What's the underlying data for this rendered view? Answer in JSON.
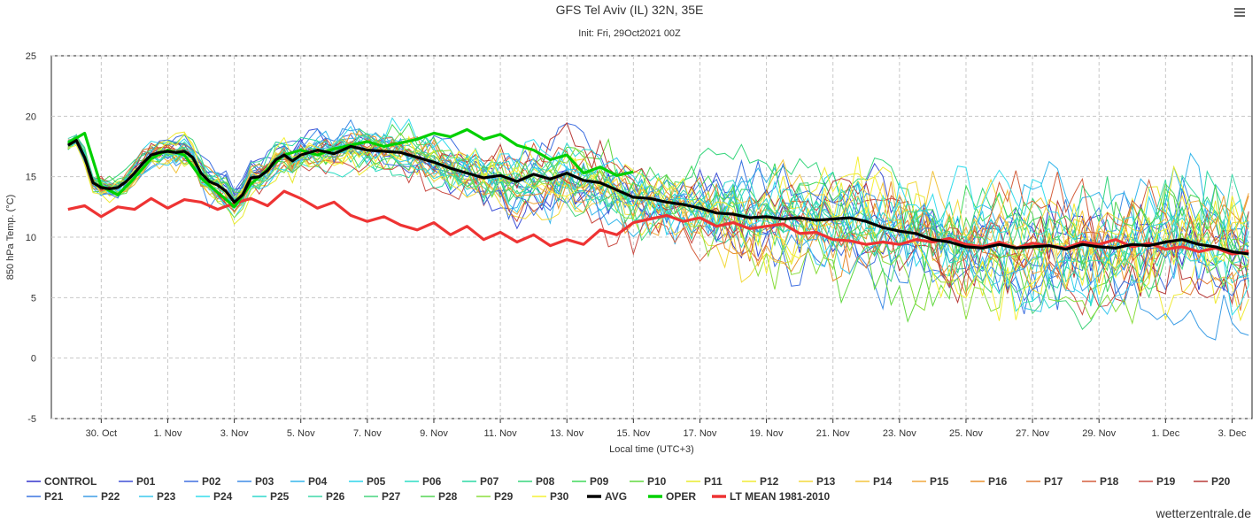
{
  "menu_icon": "hamburger-menu-icon",
  "credit": "wetterzentrale.de",
  "chart_data": {
    "type": "line",
    "title": "GFS Tel Aviv (IL) 32N, 35E",
    "subtitle": "Init: Fri, 29Oct2021 00Z",
    "xlabel": "Local time (UTC+3)",
    "ylabel": "850 hPa Temp. (°C)",
    "ylim": [
      -5,
      25
    ],
    "yticks": [
      -5,
      0,
      5,
      10,
      15,
      20,
      25
    ],
    "xlim_days_from_init": [
      -0.5,
      35.6
    ],
    "xticks": [
      {
        "label": "30. Oct",
        "day": 1
      },
      {
        "label": "1. Nov",
        "day": 3
      },
      {
        "label": "3. Nov",
        "day": 5
      },
      {
        "label": "5. Nov",
        "day": 7
      },
      {
        "label": "7. Nov",
        "day": 9
      },
      {
        "label": "9. Nov",
        "day": 11
      },
      {
        "label": "11. Nov",
        "day": 13
      },
      {
        "label": "13. Nov",
        "day": 15
      },
      {
        "label": "15. Nov",
        "day": 17
      },
      {
        "label": "17. Nov",
        "day": 19
      },
      {
        "label": "19. Nov",
        "day": 21
      },
      {
        "label": "21. Nov",
        "day": 23
      },
      {
        "label": "23. Nov",
        "day": 25
      },
      {
        "label": "25. Nov",
        "day": 27
      },
      {
        "label": "27. Nov",
        "day": 29
      },
      {
        "label": "29. Nov",
        "day": 31
      },
      {
        "label": "1. Dec",
        "day": 33
      },
      {
        "label": "3. Dec",
        "day": 35
      }
    ],
    "grid": true,
    "legend_position": "bottom",
    "members": [
      {
        "name": "CONTROL",
        "color": "#3333cc"
      },
      {
        "name": "P01",
        "color": "#3d4fd6"
      },
      {
        "name": "P02",
        "color": "#3f6fe0"
      },
      {
        "name": "P03",
        "color": "#3d8be6"
      },
      {
        "name": "P04",
        "color": "#34b6ea"
      },
      {
        "name": "P05",
        "color": "#2cd4ea"
      },
      {
        "name": "P06",
        "color": "#2bdcc4"
      },
      {
        "name": "P07",
        "color": "#2ad9a4"
      },
      {
        "name": "P08",
        "color": "#35d67c"
      },
      {
        "name": "P09",
        "color": "#3fd85a"
      },
      {
        "name": "P10",
        "color": "#5fd83e"
      },
      {
        "name": "P11",
        "color": "#e8ea2c"
      },
      {
        "name": "P12",
        "color": "#f0ea34"
      },
      {
        "name": "P13",
        "color": "#f2d93a"
      },
      {
        "name": "P14",
        "color": "#f2c43c"
      },
      {
        "name": "P15",
        "color": "#f0a83e"
      },
      {
        "name": "P16",
        "color": "#e8902e"
      },
      {
        "name": "P17",
        "color": "#e07a34"
      },
      {
        "name": "P18",
        "color": "#d45e3c"
      },
      {
        "name": "P19",
        "color": "#c94a42"
      },
      {
        "name": "P20",
        "color": "#b83a38"
      },
      {
        "name": "P21",
        "color": "#3a74e0"
      },
      {
        "name": "P22",
        "color": "#3d9ee6"
      },
      {
        "name": "P23",
        "color": "#3ac8ee"
      },
      {
        "name": "P24",
        "color": "#34dcec"
      },
      {
        "name": "P25",
        "color": "#2fd8cc"
      },
      {
        "name": "P26",
        "color": "#3dd8a8"
      },
      {
        "name": "P27",
        "color": "#45d47e"
      },
      {
        "name": "P28",
        "color": "#52d452"
      },
      {
        "name": "P29",
        "color": "#8add3c"
      },
      {
        "name": "P30",
        "color": "#f4f034"
      }
    ],
    "series": [
      {
        "name": "AVG",
        "color": "#000000",
        "x": [
          0,
          0.25,
          0.5,
          0.75,
          1,
          1.25,
          1.5,
          1.75,
          2,
          2.25,
          2.5,
          2.75,
          3,
          3.25,
          3.5,
          3.75,
          4,
          4.25,
          4.5,
          4.75,
          5,
          5.25,
          5.5,
          5.75,
          6,
          6.25,
          6.5,
          6.75,
          7,
          7.5,
          8,
          8.5,
          9,
          9.5,
          10,
          10.5,
          11,
          11.5,
          12,
          12.5,
          13,
          13.5,
          14,
          14.5,
          15,
          15.5,
          16,
          16.5,
          17,
          17.5,
          18,
          18.5,
          19,
          19.5,
          20,
          20.5,
          21,
          21.5,
          22,
          22.5,
          23,
          23.5,
          24,
          24.5,
          25,
          25.5,
          26,
          26.5,
          27,
          27.5,
          28,
          28.5,
          29,
          29.5,
          30,
          30.5,
          31,
          31.5,
          32,
          32.5,
          33,
          33.5,
          34,
          34.5,
          35,
          35.5
        ],
        "values": [
          17.6,
          18,
          16.6,
          14.5,
          14.1,
          14,
          14.1,
          14.6,
          15.3,
          16.1,
          16.8,
          17,
          17.1,
          17,
          17.1,
          16.6,
          15.3,
          14.6,
          14.3,
          13.8,
          12.9,
          13.5,
          14.9,
          15,
          15.5,
          16.4,
          16.8,
          16.3,
          16.8,
          17.2,
          16.9,
          17.5,
          17.2,
          17.1,
          17,
          16.6,
          16.2,
          15.7,
          15.3,
          14.9,
          15.1,
          14.6,
          15.2,
          14.8,
          15.3,
          14.7,
          14.5,
          13.9,
          13.3,
          13.2,
          12.9,
          12.7,
          12.4,
          12,
          11.9,
          11.6,
          11.7,
          11.5,
          11.6,
          11.4,
          11.5,
          11.6,
          11.3,
          10.8,
          10.5,
          10.3,
          9.8,
          9.6,
          9.2,
          9.1,
          9.4,
          9.1,
          9.2,
          9.3,
          9,
          9.4,
          9.2,
          9.1,
          9.4,
          9.3,
          9.6,
          9.8,
          9.4,
          9.2,
          8.8,
          8.6
        ]
      },
      {
        "name": "OPER",
        "color": "#00d000",
        "x": [
          0,
          0.5,
          1,
          1.5,
          2,
          2.5,
          3,
          3.5,
          4,
          4.5,
          5,
          5.5,
          6,
          6.5,
          7,
          7.5,
          8,
          8.5,
          9,
          9.5,
          10,
          10.5,
          11,
          11.5,
          12,
          12.5,
          13,
          13.5,
          14,
          14.5,
          15,
          15.5,
          16,
          16.5,
          17
        ],
        "values": [
          17.8,
          18.6,
          14.2,
          13.5,
          14.9,
          16.5,
          17.2,
          16.8,
          14.9,
          13.7,
          12.5,
          14.4,
          15.6,
          16.8,
          17.2,
          16.8,
          17.3,
          17.6,
          17.9,
          17.5,
          17.8,
          18.1,
          18.6,
          18.3,
          18.9,
          18.1,
          18.5,
          17.6,
          17.2,
          16.4,
          16.8,
          15.3,
          15.8,
          15.1,
          15.4
        ]
      },
      {
        "name": "LT MEAN 1981-2010",
        "color": "#ee3333",
        "x": [
          0,
          0.5,
          1,
          1.5,
          2,
          2.5,
          3,
          3.5,
          4,
          4.5,
          5,
          5.5,
          6,
          6.5,
          7,
          7.5,
          8,
          8.5,
          9,
          9.5,
          10,
          10.5,
          11,
          11.5,
          12,
          12.5,
          13,
          13.5,
          14,
          14.5,
          15,
          15.5,
          16,
          16.5,
          17,
          17.5,
          18,
          18.5,
          19,
          19.5,
          20,
          20.5,
          21,
          21.5,
          22,
          22.5,
          23,
          23.5,
          24,
          24.5,
          25,
          25.5,
          26,
          26.5,
          27,
          27.5,
          28,
          28.5,
          29,
          29.5,
          30,
          30.5,
          31,
          31.5,
          32,
          32.5,
          33,
          33.5,
          34,
          34.5,
          35,
          35.5
        ],
        "values": [
          12.3,
          12.6,
          11.7,
          12.5,
          12.3,
          13.2,
          12.4,
          13.1,
          12.9,
          12.3,
          12.8,
          13.2,
          12.6,
          13.8,
          13.2,
          12.4,
          12.9,
          11.8,
          11.3,
          11.7,
          11,
          10.6,
          11.2,
          10.2,
          10.9,
          9.8,
          10.4,
          9.6,
          10.2,
          9.3,
          9.8,
          9.4,
          10.6,
          10.2,
          11.2,
          11.5,
          11.8,
          11.3,
          11.6,
          10.9,
          11.2,
          10.7,
          10.9,
          11.1,
          10.3,
          10.4,
          9.8,
          9.7,
          9.4,
          9.6,
          9.4,
          9.8,
          9.6,
          9.9,
          9.4,
          9.2,
          9.6,
          9.1,
          9.5,
          9.3,
          9.1,
          9.6,
          9.4,
          9.8,
          9.2,
          9.5,
          9,
          9.2,
          8.8,
          9.1,
          8.6,
          8.8
        ]
      }
    ]
  }
}
